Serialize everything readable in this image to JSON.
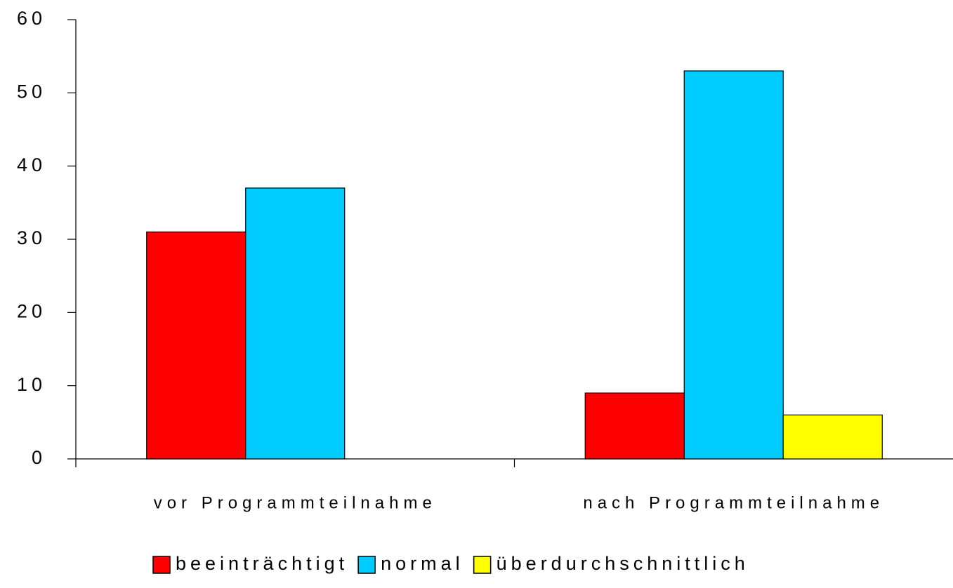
{
  "chart_data": {
    "type": "bar",
    "categories": [
      "vor Programmteilnahme",
      "nach Programmteilnahme"
    ],
    "series": [
      {
        "name": "beeinträchtigt",
        "color": "#ff0000",
        "values": [
          31,
          9
        ]
      },
      {
        "name": "normal",
        "color": "#00ccff",
        "values": [
          37,
          53
        ]
      },
      {
        "name": "überdurchschnittlich",
        "color": "#ffff00",
        "values": [
          0,
          6
        ]
      }
    ],
    "ylim": [
      0,
      60
    ],
    "yticks": [
      0,
      10,
      20,
      30,
      40,
      50,
      60
    ],
    "grid": false,
    "legend": "bottom"
  }
}
